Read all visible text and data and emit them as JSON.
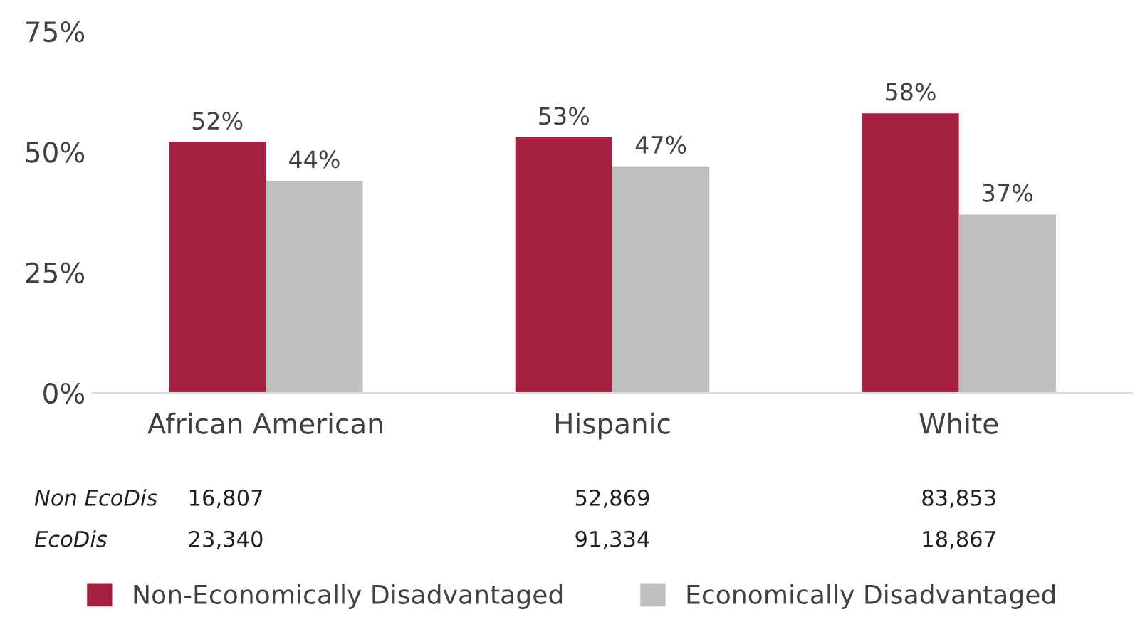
{
  "chart_data": {
    "type": "bar",
    "categories": [
      "African American",
      "Hispanic",
      "White"
    ],
    "series": [
      {
        "name": "Non-Economically Disadvantaged",
        "color": "#a42140",
        "values": [
          52,
          53,
          58
        ],
        "value_labels": [
          "52%",
          "53%",
          "58%"
        ]
      },
      {
        "name": "Economically Disadvantaged",
        "color": "#bfbfbf",
        "values": [
          44,
          47,
          37
        ],
        "value_labels": [
          "44%",
          "47%",
          "37%"
        ]
      }
    ],
    "ylim": [
      0,
      75
    ],
    "yticks": [
      {
        "value": 0,
        "label": "0%"
      },
      {
        "value": 25,
        "label": "25%"
      },
      {
        "value": 50,
        "label": "50%"
      },
      {
        "value": 75,
        "label": "75%"
      }
    ],
    "grid": false,
    "legend": "bottom",
    "annotations": [
      "Non EcoDis",
      "16,807",
      "52,869",
      "83,853",
      "EcoDis",
      "23,340",
      "91,334",
      "18,867"
    ]
  }
}
